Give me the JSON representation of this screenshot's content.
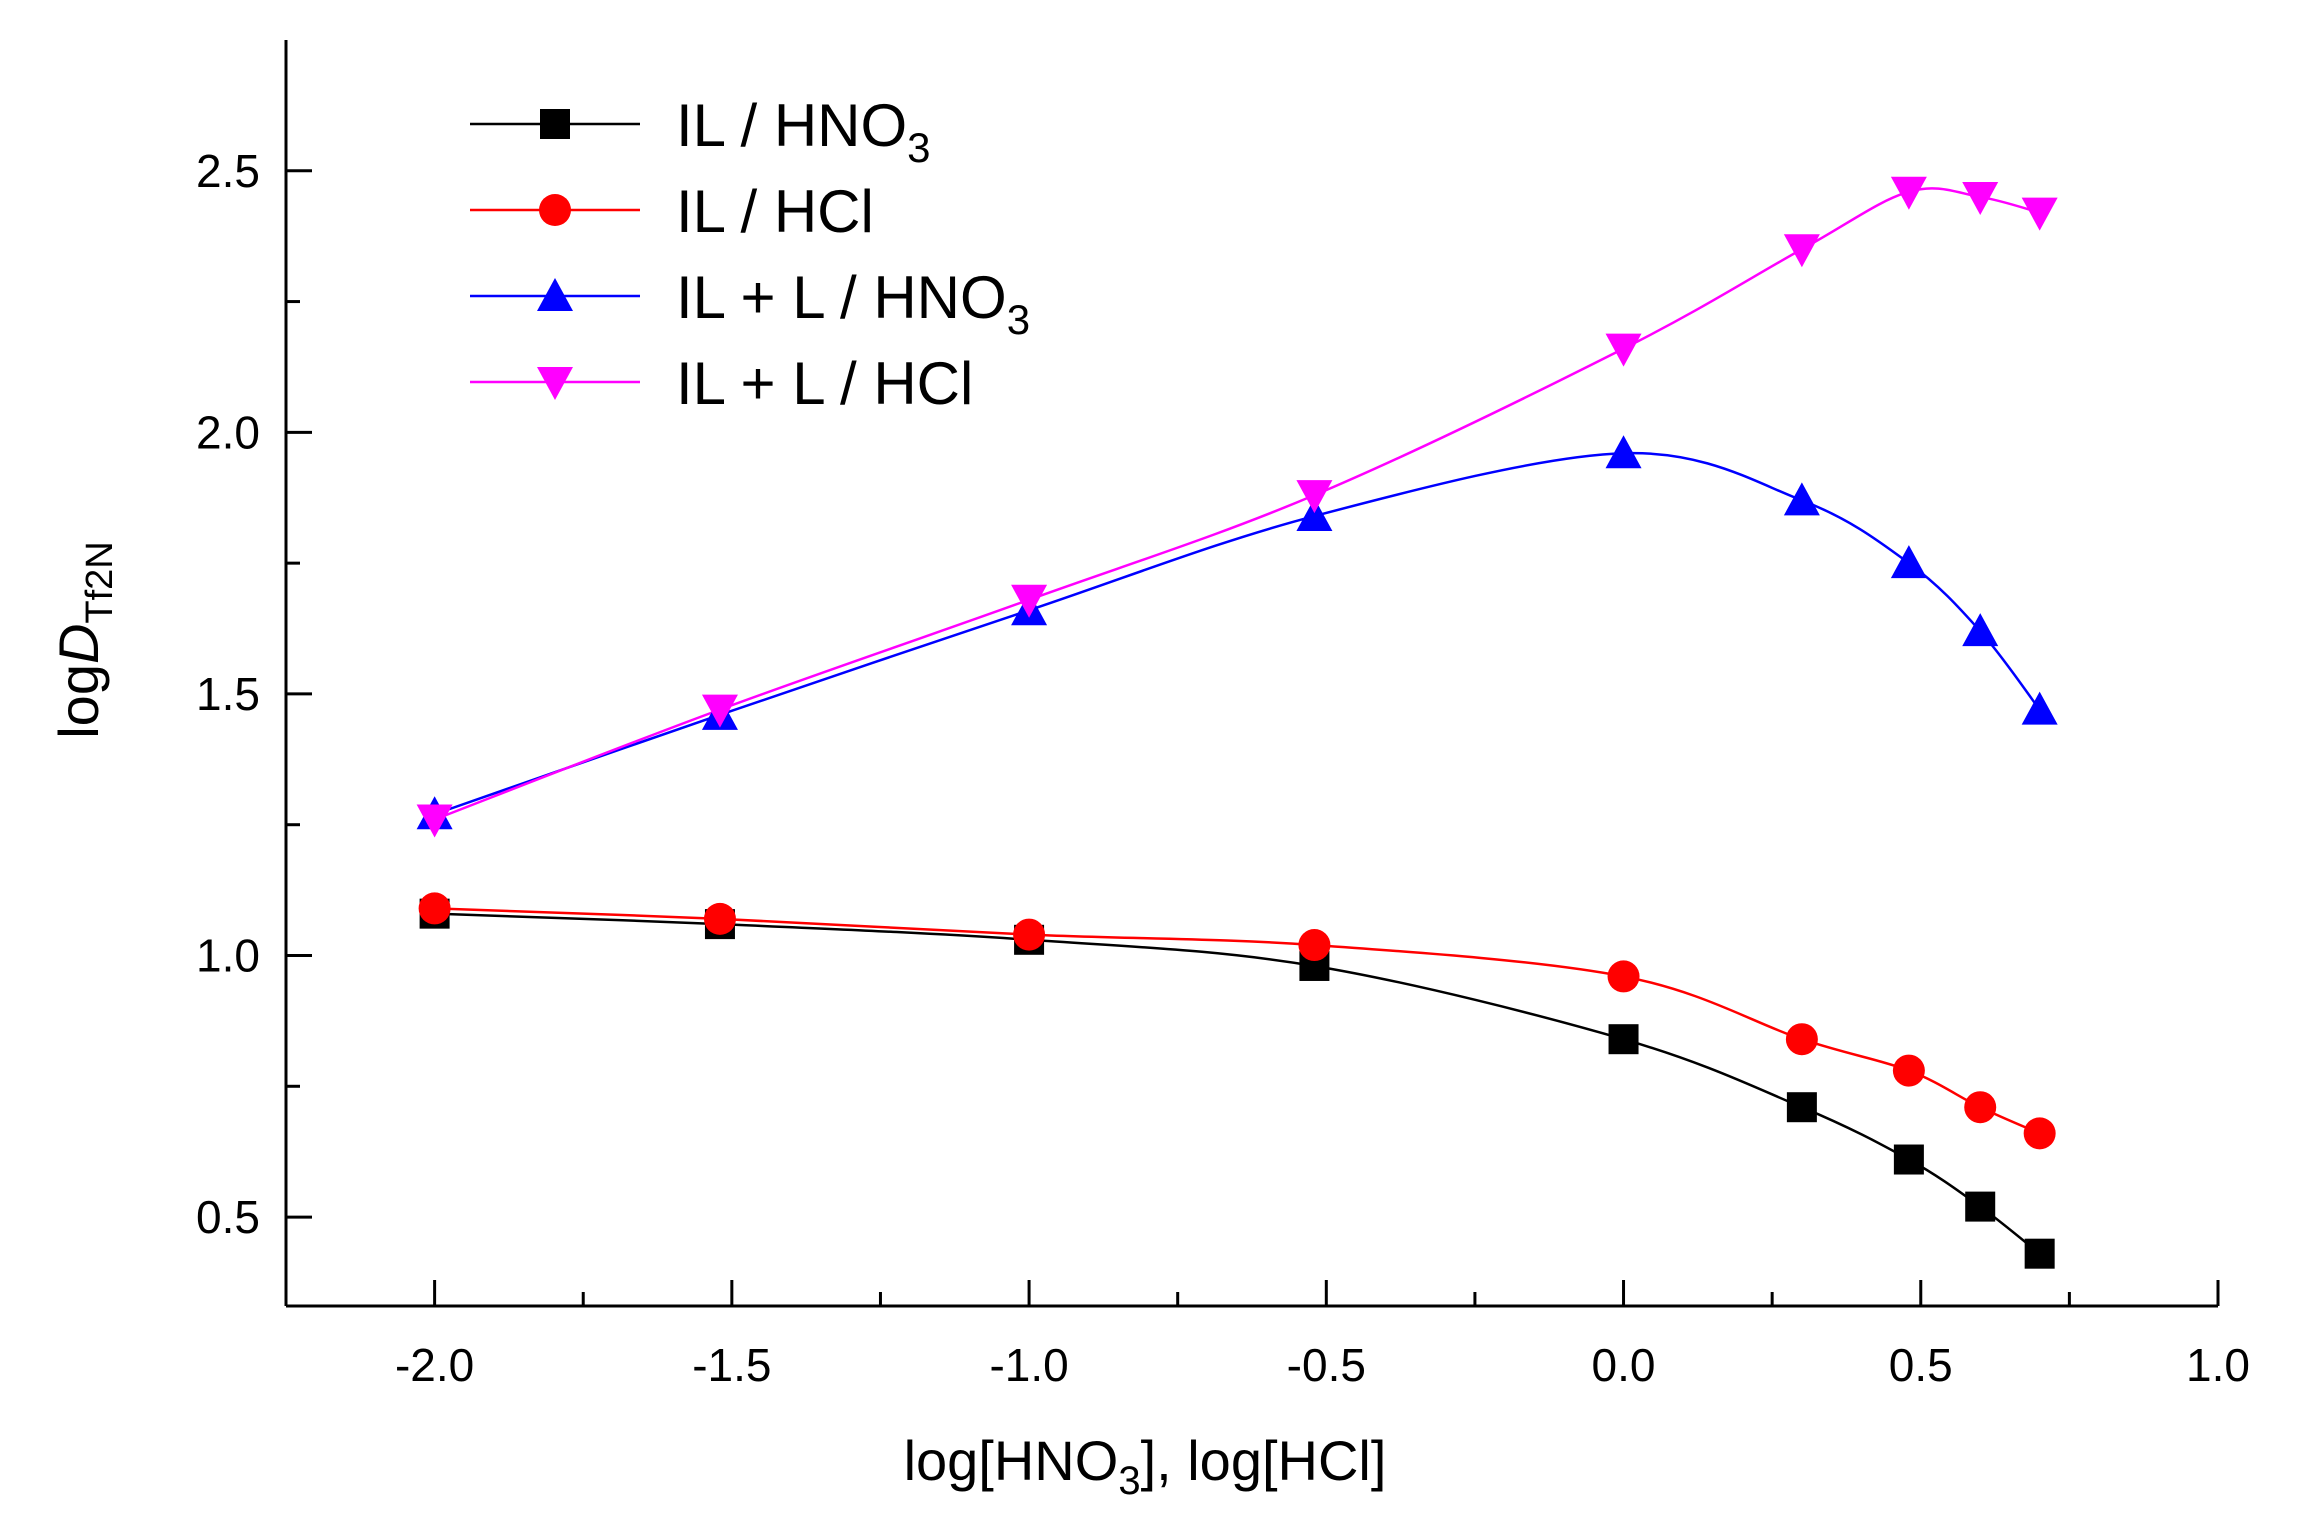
{
  "chart_data": {
    "type": "line",
    "title": "",
    "xlabel": "log[HNO3], log[HCl]",
    "xlabel_parts": [
      "log[HNO",
      "3",
      "], log[HCl]"
    ],
    "ylabel": "logD Tf2N",
    "ylabel_parts": [
      "log",
      "D",
      "Tf2N"
    ],
    "xlim": [
      -2.25,
      1.0
    ],
    "ylim": [
      0.33,
      2.75
    ],
    "x_ticks": [
      -2.0,
      -1.5,
      -1.0,
      -0.5,
      0.0,
      0.5,
      1.0
    ],
    "x_tick_labels": [
      "-2.0",
      "-1.5",
      "-1.0",
      "-0.5",
      "0.0",
      "0.5",
      "1.0"
    ],
    "y_ticks": [
      0.5,
      1.0,
      1.5,
      2.0,
      2.5
    ],
    "y_tick_labels": [
      "0.5",
      "1.0",
      "1.5",
      "2.0",
      "2.5"
    ],
    "legend_position": "top-left",
    "grid": false,
    "x": [
      -2.0,
      -1.52,
      -1.0,
      -0.52,
      0.0,
      0.3,
      0.48,
      0.6,
      0.7
    ],
    "series": [
      {
        "name": "IL / HNO3",
        "label_parts": [
          "IL / HNO",
          "3"
        ],
        "color": "#000000",
        "marker": "square",
        "values": [
          1.08,
          1.06,
          1.03,
          0.98,
          0.84,
          0.71,
          0.61,
          0.52,
          0.43
        ]
      },
      {
        "name": "IL / HCl",
        "label_parts": [
          "IL / HCl",
          ""
        ],
        "color": "#ff0000",
        "marker": "circle",
        "values": [
          1.09,
          1.07,
          1.04,
          1.02,
          0.96,
          0.84,
          0.78,
          0.71,
          0.66
        ]
      },
      {
        "name": "IL + L / HNO3",
        "label_parts": [
          "IL + L / HNO",
          "3"
        ],
        "color": "#0000ff",
        "marker": "triangle-up",
        "values": [
          1.27,
          1.46,
          1.66,
          1.84,
          1.96,
          1.87,
          1.75,
          1.62,
          1.47
        ]
      },
      {
        "name": "IL + L / HCl",
        "label_parts": [
          "IL + L / HCl",
          ""
        ],
        "color": "#ff00ff",
        "marker": "triangle-down",
        "values": [
          1.26,
          1.47,
          1.68,
          1.88,
          2.16,
          2.35,
          2.46,
          2.45,
          2.42
        ]
      }
    ]
  }
}
